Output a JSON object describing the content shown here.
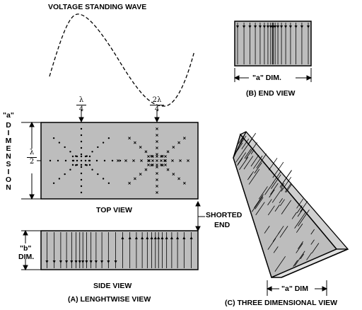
{
  "title": "VOLTAGE STANDING WAVE",
  "end_view": {
    "dim_label": "\"a\" DIM.",
    "caption": "(B) END VIEW"
  },
  "lengthwise": {
    "lambda_quarter": {
      "num": "λ",
      "den": "4"
    },
    "two_lambda_quarter": {
      "num": "2λ",
      "den": "4"
    },
    "lambda_half": {
      "num": "λ",
      "den": "2"
    },
    "a_label": "\"a\"",
    "dimension_letters": [
      "D",
      "I",
      "M",
      "E",
      "N",
      "S",
      "I",
      "O",
      "N"
    ],
    "top_view": "TOP VIEW",
    "shorted_end": [
      "SHORTED",
      "END"
    ],
    "b_dim": [
      "\"b\"",
      "DIM."
    ],
    "side_view": "SIDE VIEW",
    "caption": "(A) LENGHTWISE VIEW"
  },
  "three_d": {
    "dim_label": "\"a\" DIM",
    "caption": "(C) THREE DIMENSIONAL VIEW"
  },
  "colors": {
    "fill": "#bdbdbd",
    "ink": "#000000"
  }
}
